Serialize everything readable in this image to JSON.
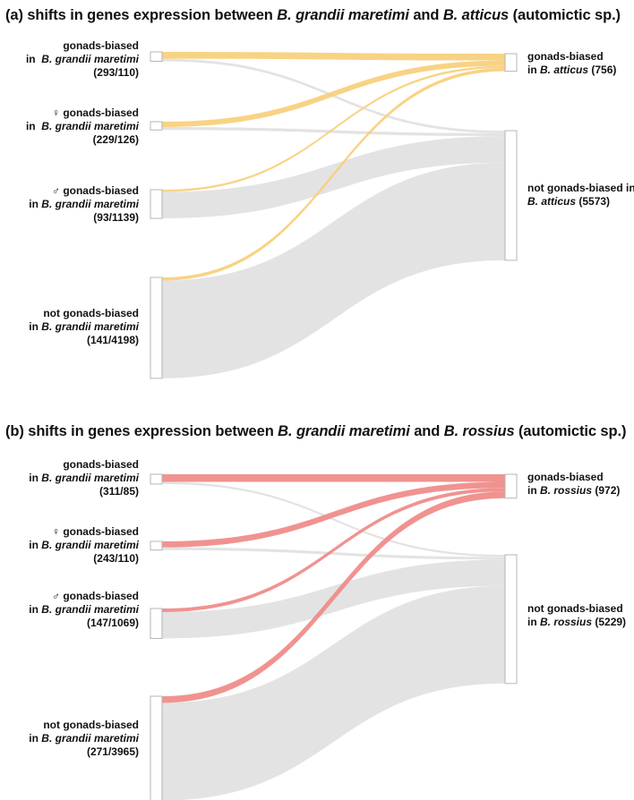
{
  "colors": {
    "flow_gray": "#e2e2e2",
    "panel_a_highlight": "#f7cf7a",
    "panel_b_highlight": "#ef8a87",
    "node_stroke": "#b5b5b5"
  },
  "panels": [
    {
      "id": "a",
      "title": {
        "prefix": "(a) shifts in genes expression between ",
        "species1": "B. grandii maretimi",
        "mid": " and ",
        "species2": "B. atticus",
        "suffix": " (automictic sp.)"
      },
      "left_nodes": [
        {
          "line1": "gonads-biased",
          "line2_prefix": "in  ",
          "line2_species": "B. grandii maretimi",
          "line3": "(293/110)",
          "to_biased": 293,
          "to_not": 110
        },
        {
          "line1": "♀ gonads-biased",
          "line2_prefix": "in  ",
          "line2_species": "B. grandii maretimi",
          "line3": "(229/126)",
          "to_biased": 229,
          "to_not": 126
        },
        {
          "line1": "♂ gonads-biased",
          "line2_prefix": "in ",
          "line2_species": "B. grandii maretimi",
          "line3": "(93/1139)",
          "to_biased": 93,
          "to_not": 1139
        },
        {
          "line1": "not gonads-biased",
          "line2_prefix": "in ",
          "line2_species": "B. grandii maretimi",
          "line3": "(141/4198)",
          "to_biased": 141,
          "to_not": 4198
        }
      ],
      "right_nodes": [
        {
          "line1": "gonads-biased",
          "line2_prefix": "in ",
          "line2_species": "B. atticus",
          "line2_suffix": " (756)",
          "total": 756
        },
        {
          "line1": "not gonads-biased in",
          "line2_prefix": "",
          "line2_species": "B. atticus",
          "line2_suffix": " (5573)",
          "total": 5573
        }
      ]
    },
    {
      "id": "b",
      "title": {
        "prefix": "(b) shifts in genes expression between ",
        "species1": "B. grandii maretimi",
        "mid": " and ",
        "species2": "B. rossius",
        "suffix": " (automictic sp.)"
      },
      "left_nodes": [
        {
          "line1": "gonads-biased",
          "line2_prefix": "in ",
          "line2_species": "B. grandii maretimi",
          "line3": "(311/85)",
          "to_biased": 311,
          "to_not": 85
        },
        {
          "line1": "♀ gonads-biased",
          "line2_prefix": "in ",
          "line2_species": "B. grandii maretimi",
          "line3": "(243/110)",
          "to_biased": 243,
          "to_not": 110
        },
        {
          "line1": "♂ gonads-biased",
          "line2_prefix": "in ",
          "line2_species": "B. grandii maretimi",
          "line3": "(147/1069)",
          "to_biased": 147,
          "to_not": 1069
        },
        {
          "line1": "not gonads-biased",
          "line2_prefix": "in ",
          "line2_species": "B. grandii maretimi",
          "line3": "(271/3965)",
          "to_biased": 271,
          "to_not": 3965
        }
      ],
      "right_nodes": [
        {
          "line1": "gonads-biased",
          "line2_prefix": "in ",
          "line2_species": "B. rossius",
          "line2_suffix": " (972)",
          "total": 972
        },
        {
          "line1": "not gonads-biased",
          "line2_prefix": "in ",
          "line2_species": "B. rossius",
          "line2_suffix": " (5229)",
          "total": 5229
        }
      ]
    }
  ]
}
